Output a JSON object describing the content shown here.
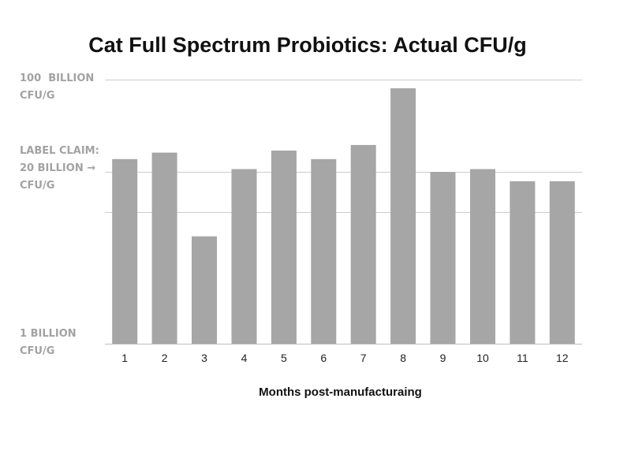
{
  "chart_data": {
    "type": "bar",
    "title": "Cat Full Spectrum Probiotics: Actual CFU/g",
    "xlabel": "Months post-manufacturaing",
    "ylabel": "",
    "y_scale": "log",
    "ylim": [
      1,
      100
    ],
    "y_unit": "billion CFU/g",
    "categories": [
      "1",
      "2",
      "3",
      "4",
      "5",
      "6",
      "7",
      "8",
      "9",
      "10",
      "11",
      "12"
    ],
    "values": [
      25,
      28,
      6.5,
      21,
      29,
      25,
      32,
      86,
      20,
      21,
      17,
      17
    ],
    "reference_lines": [
      100,
      20,
      10
    ],
    "y_annotations": [
      {
        "text": "100  BILLION\nCFU/G",
        "value": 100
      },
      {
        "text": "LABEL CLAIM:\n20 BILLION →\nCFU/G",
        "value": 20
      },
      {
        "text": "1 BILLION\nCFU/G",
        "value": 1
      }
    ],
    "bar_color": "#a6a6a6",
    "grid_color": "#cccccc",
    "grid": false,
    "legend": "none"
  }
}
